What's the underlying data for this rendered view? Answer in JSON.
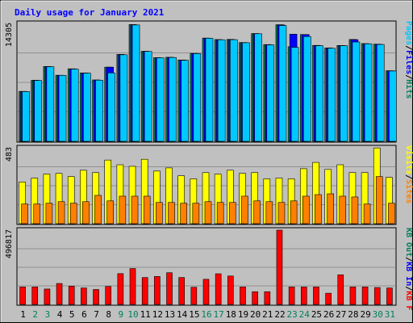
{
  "chart_data": [
    {
      "type": "bar",
      "title": "Daily usage for January 2021",
      "panel": "hits",
      "ymax_label": "14305",
      "ylim": [
        0,
        14305
      ],
      "legend": [
        {
          "text": "Hits",
          "color": "#00805C"
        },
        {
          "text": "Files",
          "color": "#0000FF"
        },
        {
          "text": "Pages",
          "color": "#00C8FF"
        }
      ],
      "categories": [
        "1",
        "2",
        "3",
        "4",
        "5",
        "6",
        "7",
        "8",
        "9",
        "10",
        "11",
        "12",
        "13",
        "14",
        "15",
        "16",
        "17",
        "18",
        "19",
        "20",
        "21",
        "22",
        "23",
        "24",
        "25",
        "26",
        "27",
        "28",
        "29",
        "30",
        "31"
      ],
      "weekend_days": [
        "2",
        "3",
        "9",
        "10",
        "16",
        "17",
        "23",
        "24",
        "30",
        "31"
      ],
      "series": [
        {
          "name": "Hits",
          "color": "#00805C",
          "values": [
            6060,
            7410,
            9080,
            8020,
            8800,
            8300,
            7450,
            9000,
            10550,
            14170,
            10930,
            10150,
            10200,
            9870,
            10670,
            12530,
            12350,
            12370,
            11990,
            13080,
            11740,
            14150,
            11480,
            12960,
            11640,
            11330,
            11630,
            12360,
            11860,
            11790,
            8570
          ]
        },
        {
          "name": "Files",
          "color": "#0000FF",
          "values": [
            6030,
            7380,
            9050,
            8000,
            8760,
            8270,
            7420,
            9000,
            10500,
            14120,
            10900,
            10120,
            10170,
            9830,
            10640,
            12500,
            12320,
            12330,
            11960,
            13050,
            11700,
            14120,
            13000,
            12950,
            11600,
            11290,
            11600,
            12330,
            11830,
            11750,
            8530
          ]
        },
        {
          "name": "Pages",
          "color": "#00C8FF",
          "values": [
            6030,
            7380,
            9050,
            8000,
            8760,
            8270,
            7420,
            8300,
            10500,
            14120,
            10900,
            10120,
            10170,
            9830,
            10640,
            12500,
            12320,
            12330,
            11960,
            13050,
            11700,
            14050,
            11400,
            12720,
            11600,
            11290,
            11600,
            12050,
            11830,
            11750,
            8530
          ]
        }
      ]
    },
    {
      "type": "bar",
      "panel": "visits",
      "ymax_label": "483",
      "ylim": [
        0,
        483
      ],
      "legend": [
        {
          "text": "Sites",
          "color": "#FF8000"
        },
        {
          "text": "/",
          "color": "#000000"
        },
        {
          "text": "Visits",
          "color": "#FFFF00"
        }
      ],
      "categories": [
        "1",
        "2",
        "3",
        "4",
        "5",
        "6",
        "7",
        "8",
        "9",
        "10",
        "11",
        "12",
        "13",
        "14",
        "15",
        "16",
        "17",
        "18",
        "19",
        "20",
        "21",
        "22",
        "23",
        "24",
        "25",
        "26",
        "27",
        "28",
        "29",
        "30",
        "31"
      ],
      "series": [
        {
          "name": "Visits",
          "color": "#FFFF00",
          "values": [
            265,
            290,
            315,
            320,
            300,
            340,
            325,
            405,
            375,
            365,
            410,
            335,
            355,
            305,
            285,
            325,
            315,
            340,
            320,
            325,
            285,
            290,
            285,
            350,
            390,
            345,
            375,
            325,
            325,
            482,
            295
          ]
        },
        {
          "name": "Sites",
          "color": "#FF8000",
          "values": [
            125,
            125,
            130,
            140,
            130,
            140,
            180,
            145,
            175,
            175,
            175,
            135,
            135,
            130,
            130,
            140,
            135,
            135,
            175,
            145,
            140,
            135,
            145,
            175,
            185,
            190,
            175,
            170,
            125,
            300,
            130
          ]
        }
      ]
    },
    {
      "type": "bar",
      "panel": "kbytes",
      "ymax_label": "496817",
      "ylim": [
        0,
        496817
      ],
      "legend": [
        {
          "text": "KB F",
          "color": "#FF0000"
        },
        {
          "text": "KB In",
          "color": "#0000FF"
        },
        {
          "text": "KB Out",
          "color": "#00805C"
        }
      ],
      "categories": [
        "1",
        "2",
        "3",
        "4",
        "5",
        "6",
        "7",
        "8",
        "9",
        "10",
        "11",
        "12",
        "13",
        "14",
        "15",
        "16",
        "17",
        "18",
        "19",
        "20",
        "21",
        "22",
        "23",
        "24",
        "25",
        "26",
        "27",
        "28",
        "29",
        "30",
        "31"
      ],
      "series": [
        {
          "name": "KB F",
          "color": "#FF0000",
          "values": [
            117000,
            117000,
            103000,
            140000,
            122000,
            110000,
            100000,
            120000,
            206000,
            240000,
            180000,
            187000,
            212000,
            180000,
            115000,
            168000,
            205000,
            190000,
            117000,
            85000,
            85000,
            496817,
            117000,
            117000,
            117000,
            75000,
            198000,
            117000,
            117000,
            113000,
            110000
          ]
        }
      ]
    }
  ]
}
